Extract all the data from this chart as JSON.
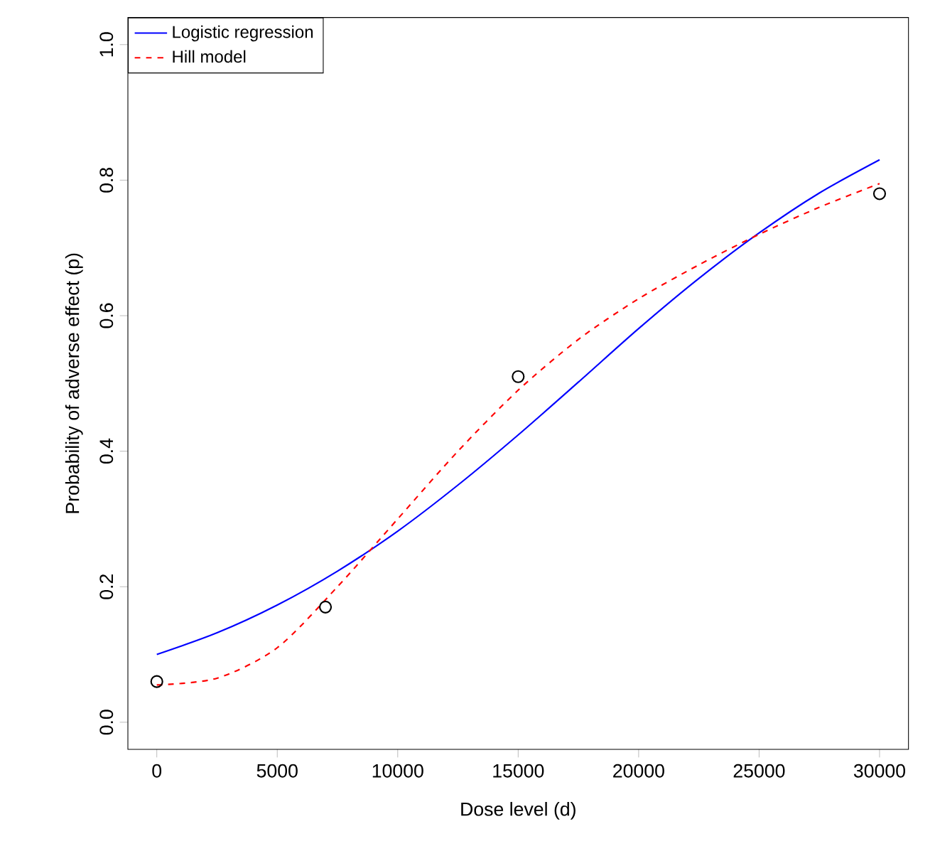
{
  "chart_data": {
    "type": "line",
    "xlabel": "Dose level (d)",
    "ylabel": "Probability of adverse effect (p)",
    "xlim": [
      -1200,
      31200
    ],
    "ylim": [
      -0.04,
      1.04
    ],
    "xticks": [
      0,
      5000,
      10000,
      15000,
      20000,
      25000,
      30000
    ],
    "yticks": [
      {
        "value": 0,
        "label": "0.0"
      },
      0.2,
      0.4,
      0.6,
      0.8,
      {
        "value": 1,
        "label": "1.0"
      }
    ],
    "legend": "top left",
    "series": [
      {
        "name": "Logistic regression",
        "color": "#0000ff",
        "line_style": "solid",
        "x": [
          0,
          2500,
          5000,
          7500,
          10000,
          12500,
          15000,
          17500,
          20000,
          22500,
          25000,
          27500,
          30000
        ],
        "values": [
          0.1,
          0.132,
          0.173,
          0.223,
          0.282,
          0.35,
          0.424,
          0.502,
          0.581,
          0.655,
          0.722,
          0.781,
          0.83
        ]
      },
      {
        "name": "Hill model",
        "color": "#ff0000",
        "line_style": "dashed",
        "x": [
          0,
          2500,
          5000,
          7500,
          10000,
          12500,
          15000,
          17500,
          20000,
          22500,
          25000,
          27500,
          30000
        ],
        "values": [
          0.055,
          0.065,
          0.11,
          0.2,
          0.3,
          0.4,
          0.49,
          0.565,
          0.625,
          0.675,
          0.72,
          0.76,
          0.795
        ]
      },
      {
        "type": "scatter",
        "color": "#000000",
        "marker": "circle",
        "x": [
          0,
          7000,
          15000,
          30000
        ],
        "values": [
          0.06,
          0.17,
          0.51,
          0.78
        ]
      }
    ]
  }
}
